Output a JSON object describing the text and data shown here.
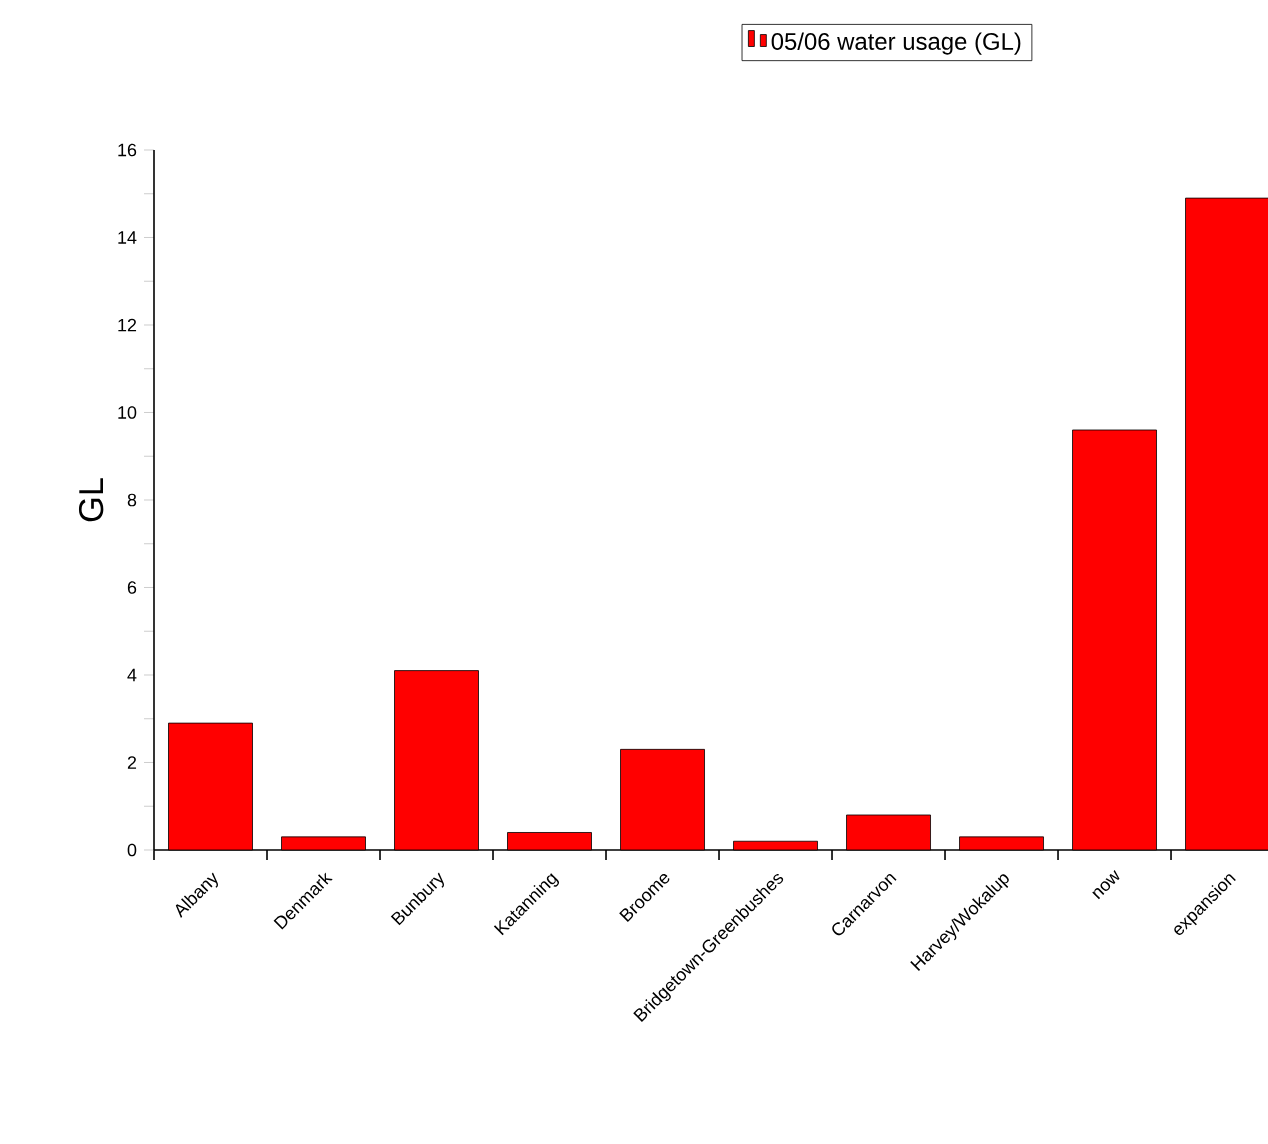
{
  "chart_data": {
    "type": "bar",
    "ylabel": "GL",
    "categories": [
      "Albany",
      "Denmark",
      "Bunbury",
      "Katanning",
      "Broome",
      "Bridgetown-Greenbushes",
      "Carnarvon",
      "Harvey/Wokalup",
      "now",
      "expansion"
    ],
    "series": [
      {
        "name": "05/06 water usage (GL)",
        "color": "#ff0000",
        "values": [
          2.9,
          0.3,
          4.1,
          0.4,
          2.3,
          0.2,
          0.8,
          0.3,
          9.6,
          14.9
        ]
      }
    ],
    "ylim": [
      0,
      16
    ],
    "yticks": [
      0,
      2,
      4,
      6,
      8,
      10,
      12,
      14,
      16
    ],
    "grid": false,
    "legend": "top right"
  }
}
